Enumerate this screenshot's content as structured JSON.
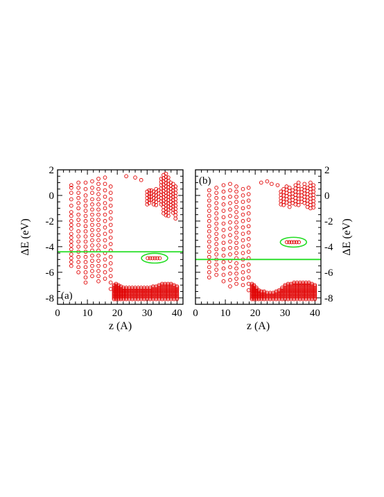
{
  "colors": {
    "points": "#e00000",
    "highlight": "#22dd22",
    "axes": "#000000"
  },
  "chart_data": [
    {
      "type": "scatter",
      "panel_label": "(a)",
      "xlabel": "z (A)",
      "ylabel": "ΔE (eV)",
      "ylabel_side": "left",
      "xlim": [
        0,
        42
      ],
      "ylim": [
        -8.5,
        2
      ],
      "xticks": [
        "0",
        "10",
        "20",
        "30",
        "40"
      ],
      "yticks": [
        "-8",
        "-6",
        "-4",
        "-2",
        "0",
        "2"
      ],
      "fermi_level": -4.4,
      "highlighted_cluster": {
        "center": [
          32.5,
          -4.9
        ],
        "radii": [
          4.4,
          0.38
        ]
      },
      "bands": [
        {
          "x": 4.6,
          "levels": [
            0.8,
            0.6,
            0.2,
            -0.3,
            -0.8,
            -1.3,
            -1.6,
            -2.0,
            -2.3,
            -2.6,
            -3.0,
            -3.3,
            -3.6,
            -3.9,
            -4.2,
            -4.6,
            -4.9,
            -5.2,
            -5.5
          ]
        },
        {
          "x": 7.0,
          "levels": [
            1.0,
            0.6,
            0.2,
            -0.2,
            -0.6,
            -1.0,
            -1.5,
            -1.9,
            -2.3,
            -2.8,
            -3.2,
            -3.6,
            -4.0,
            -4.4,
            -4.8,
            -5.2,
            -5.6,
            -6.0
          ]
        },
        {
          "x": 9.4,
          "levels": [
            1.0,
            0.5,
            0.0,
            -0.4,
            -0.8,
            -1.2,
            -1.6,
            -2.0,
            -2.4,
            -2.8,
            -3.2,
            -3.6,
            -4.0,
            -4.4,
            -4.8,
            -5.2,
            -5.6,
            -6.0,
            -6.4,
            -6.8
          ]
        },
        {
          "x": 11.6,
          "levels": [
            1.1,
            0.6,
            0.2,
            -0.3,
            -0.7,
            -1.1,
            -1.5,
            -1.9,
            -2.3,
            -2.7,
            -3.1,
            -3.5,
            -3.9,
            -4.3,
            -4.7,
            -5.1,
            -5.5,
            -5.9,
            -6.3
          ]
        },
        {
          "x": 13.7,
          "levels": [
            1.3,
            0.9,
            0.5,
            0.1,
            -0.3,
            -0.7,
            -1.1,
            -1.5,
            -1.9,
            -2.3,
            -2.7,
            -3.1,
            -3.5,
            -3.9,
            -4.3,
            -4.7,
            -5.1,
            -5.5,
            -5.9,
            -6.3,
            -6.7
          ]
        },
        {
          "x": 15.9,
          "levels": [
            1.4,
            0.9,
            0.4,
            -0.1,
            -0.6,
            -1.0,
            -1.5,
            -2.0,
            -2.5,
            -3.0,
            -3.5,
            -4.0,
            -4.5,
            -5.0,
            -5.5,
            -6.0,
            -6.5
          ]
        },
        {
          "x": 17.8,
          "levels": [
            0.7,
            0.2,
            -0.3,
            -0.8,
            -1.3,
            -1.8,
            -2.3,
            -2.8,
            -3.3,
            -3.8,
            -4.3,
            -4.8,
            -5.3,
            -5.8,
            -6.3,
            -6.8,
            -7.3
          ]
        }
      ],
      "bottom_band": {
        "x": [
          18.9,
          19.6,
          20.4,
          21.2,
          22.1,
          23.0,
          24.0,
          25.0,
          26.0,
          27.0,
          28.0,
          29.0,
          30.0,
          31.0,
          32.0,
          33.0,
          34.0,
          35.0,
          36.0,
          37.0,
          38.0,
          39.0,
          40.0
        ],
        "top": [
          -7.0,
          -6.9,
          -7.0,
          -7.1,
          -7.2,
          -7.2,
          -7.2,
          -7.2,
          -7.2,
          -7.2,
          -7.2,
          -7.2,
          -7.2,
          -7.2,
          -7.1,
          -7.1,
          -7.0,
          -6.9,
          -6.9,
          -6.9,
          -6.9,
          -7.0,
          -7.1
        ],
        "bottom": -8.1
      },
      "upper_cluster": {
        "x": [
          30.0,
          30.7,
          31.4,
          32.2,
          33.0,
          33.8,
          34.7,
          35.5,
          36.3,
          37.1,
          37.9,
          38.7,
          39.5
        ],
        "top": [
          0.3,
          0.4,
          0.4,
          0.3,
          0.5,
          0.4,
          1.3,
          1.6,
          1.7,
          1.4,
          1.0,
          0.9,
          0.7
        ],
        "bottom": [
          -0.8,
          -0.6,
          -0.5,
          -0.8,
          -0.9,
          -0.5,
          -0.9,
          -1.4,
          -1.6,
          -1.8,
          -1.2,
          -1.5,
          -1.9
        ]
      },
      "isolated_points": [
        [
          23.0,
          1.5
        ],
        [
          26.0,
          1.4
        ],
        [
          28.0,
          1.2
        ]
      ],
      "highlight_points": {
        "x": [
          30.2,
          31.0,
          31.8,
          32.6,
          33.4,
          34.2
        ],
        "y": -4.9
      }
    },
    {
      "type": "scatter",
      "panel_label": "(b)",
      "xlabel": "z (A)",
      "ylabel": "ΔE (eV)",
      "ylabel_side": "right",
      "xlim": [
        0,
        42
      ],
      "ylim": [
        -8.5,
        2
      ],
      "xticks": [
        "0",
        "10",
        "20",
        "30",
        "40"
      ],
      "yticks": [
        "-8",
        "-6",
        "-4",
        "-2",
        "0",
        "2"
      ],
      "fermi_level": -5.0,
      "highlighted_cluster": {
        "center": [
          32.8,
          -3.65
        ],
        "radii": [
          4.4,
          0.38
        ]
      },
      "bands": [
        {
          "x": 4.6,
          "levels": [
            0.4,
            0.0,
            -0.4,
            -0.8,
            -1.2,
            -1.6,
            -2.0,
            -2.4,
            -2.8,
            -3.2,
            -3.6,
            -4.0,
            -4.4,
            -4.8,
            -5.2,
            -5.6,
            -6.0,
            -6.4
          ]
        },
        {
          "x": 7.0,
          "levels": [
            0.6,
            0.2,
            -0.2,
            -0.6,
            -1.0,
            -1.4,
            -1.8,
            -2.2,
            -2.6,
            -3.0,
            -3.4,
            -3.8,
            -4.2,
            -4.6,
            -5.0,
            -5.4,
            -5.8,
            -6.2
          ]
        },
        {
          "x": 9.4,
          "levels": [
            0.8,
            0.3,
            -0.2,
            -0.7,
            -1.2,
            -1.7,
            -2.2,
            -2.7,
            -3.2,
            -3.7,
            -4.2,
            -4.7,
            -5.2,
            -5.7,
            -6.2,
            -6.7
          ]
        },
        {
          "x": 11.6,
          "levels": [
            0.9,
            0.4,
            -0.1,
            -0.6,
            -1.1,
            -1.6,
            -2.1,
            -2.6,
            -3.1,
            -3.6,
            -4.1,
            -4.6,
            -5.1,
            -5.6,
            -6.1,
            -6.6,
            -7.1
          ]
        },
        {
          "x": 13.7,
          "levels": [
            0.7,
            0.3,
            -0.1,
            -0.5,
            -0.9,
            -1.3,
            -1.7,
            -2.1,
            -2.5,
            -2.9,
            -3.3,
            -3.7,
            -4.1,
            -4.5,
            -4.9,
            -5.3,
            -5.7,
            -6.1,
            -6.5,
            -6.9
          ]
        },
        {
          "x": 15.9,
          "levels": [
            0.5,
            0.0,
            -0.5,
            -1.0,
            -1.5,
            -2.0,
            -2.5,
            -3.0,
            -3.5,
            -4.0,
            -4.5,
            -5.0,
            -5.5,
            -6.0,
            -6.5,
            -7.0
          ]
        },
        {
          "x": 17.8,
          "levels": [
            0.6,
            0.1,
            -0.4,
            -0.9,
            -1.4,
            -1.9,
            -2.4,
            -2.9,
            -3.4,
            -3.9,
            -4.4,
            -4.9,
            -5.4,
            -5.9,
            -6.4,
            -6.9,
            -7.4
          ]
        }
      ],
      "bottom_band": {
        "x": [
          18.9,
          19.6,
          20.4,
          21.2,
          22.1,
          23.0,
          24.0,
          25.0,
          26.0,
          27.0,
          28.0,
          29.0,
          30.0,
          31.0,
          32.0,
          33.0,
          34.0,
          35.0,
          36.0,
          37.0,
          38.0,
          39.0,
          40.0
        ],
        "top": [
          -6.9,
          -7.0,
          -7.2,
          -7.4,
          -7.5,
          -7.5,
          -7.6,
          -7.6,
          -7.6,
          -7.5,
          -7.4,
          -7.2,
          -7.0,
          -6.9,
          -6.9,
          -6.8,
          -6.8,
          -6.8,
          -6.8,
          -6.8,
          -6.8,
          -6.9,
          -7.0
        ],
        "bottom": -8.1
      },
      "upper_cluster": {
        "x": [
          28.6,
          29.5,
          30.5,
          31.5,
          32.5,
          33.5,
          34.5,
          35.5,
          36.5,
          37.5,
          38.5,
          39.5
        ],
        "top": [
          0.3,
          0.5,
          0.7,
          0.6,
          0.4,
          0.8,
          1.0,
          0.5,
          0.9,
          0.6,
          1.0,
          0.8
        ],
        "bottom": [
          -0.7,
          -0.8,
          -0.6,
          -0.9,
          -0.8,
          -0.7,
          -0.8,
          -0.6,
          -0.7,
          -0.9,
          -1.0,
          -1.1
        ]
      },
      "isolated_points": [
        [
          22.0,
          1.0
        ],
        [
          24.0,
          1.1
        ],
        [
          25.5,
          0.9
        ],
        [
          27.5,
          0.8
        ]
      ],
      "highlight_points": {
        "x": [
          30.6,
          31.4,
          32.2,
          33.0,
          33.8,
          34.6
        ],
        "y": -3.65
      }
    }
  ]
}
